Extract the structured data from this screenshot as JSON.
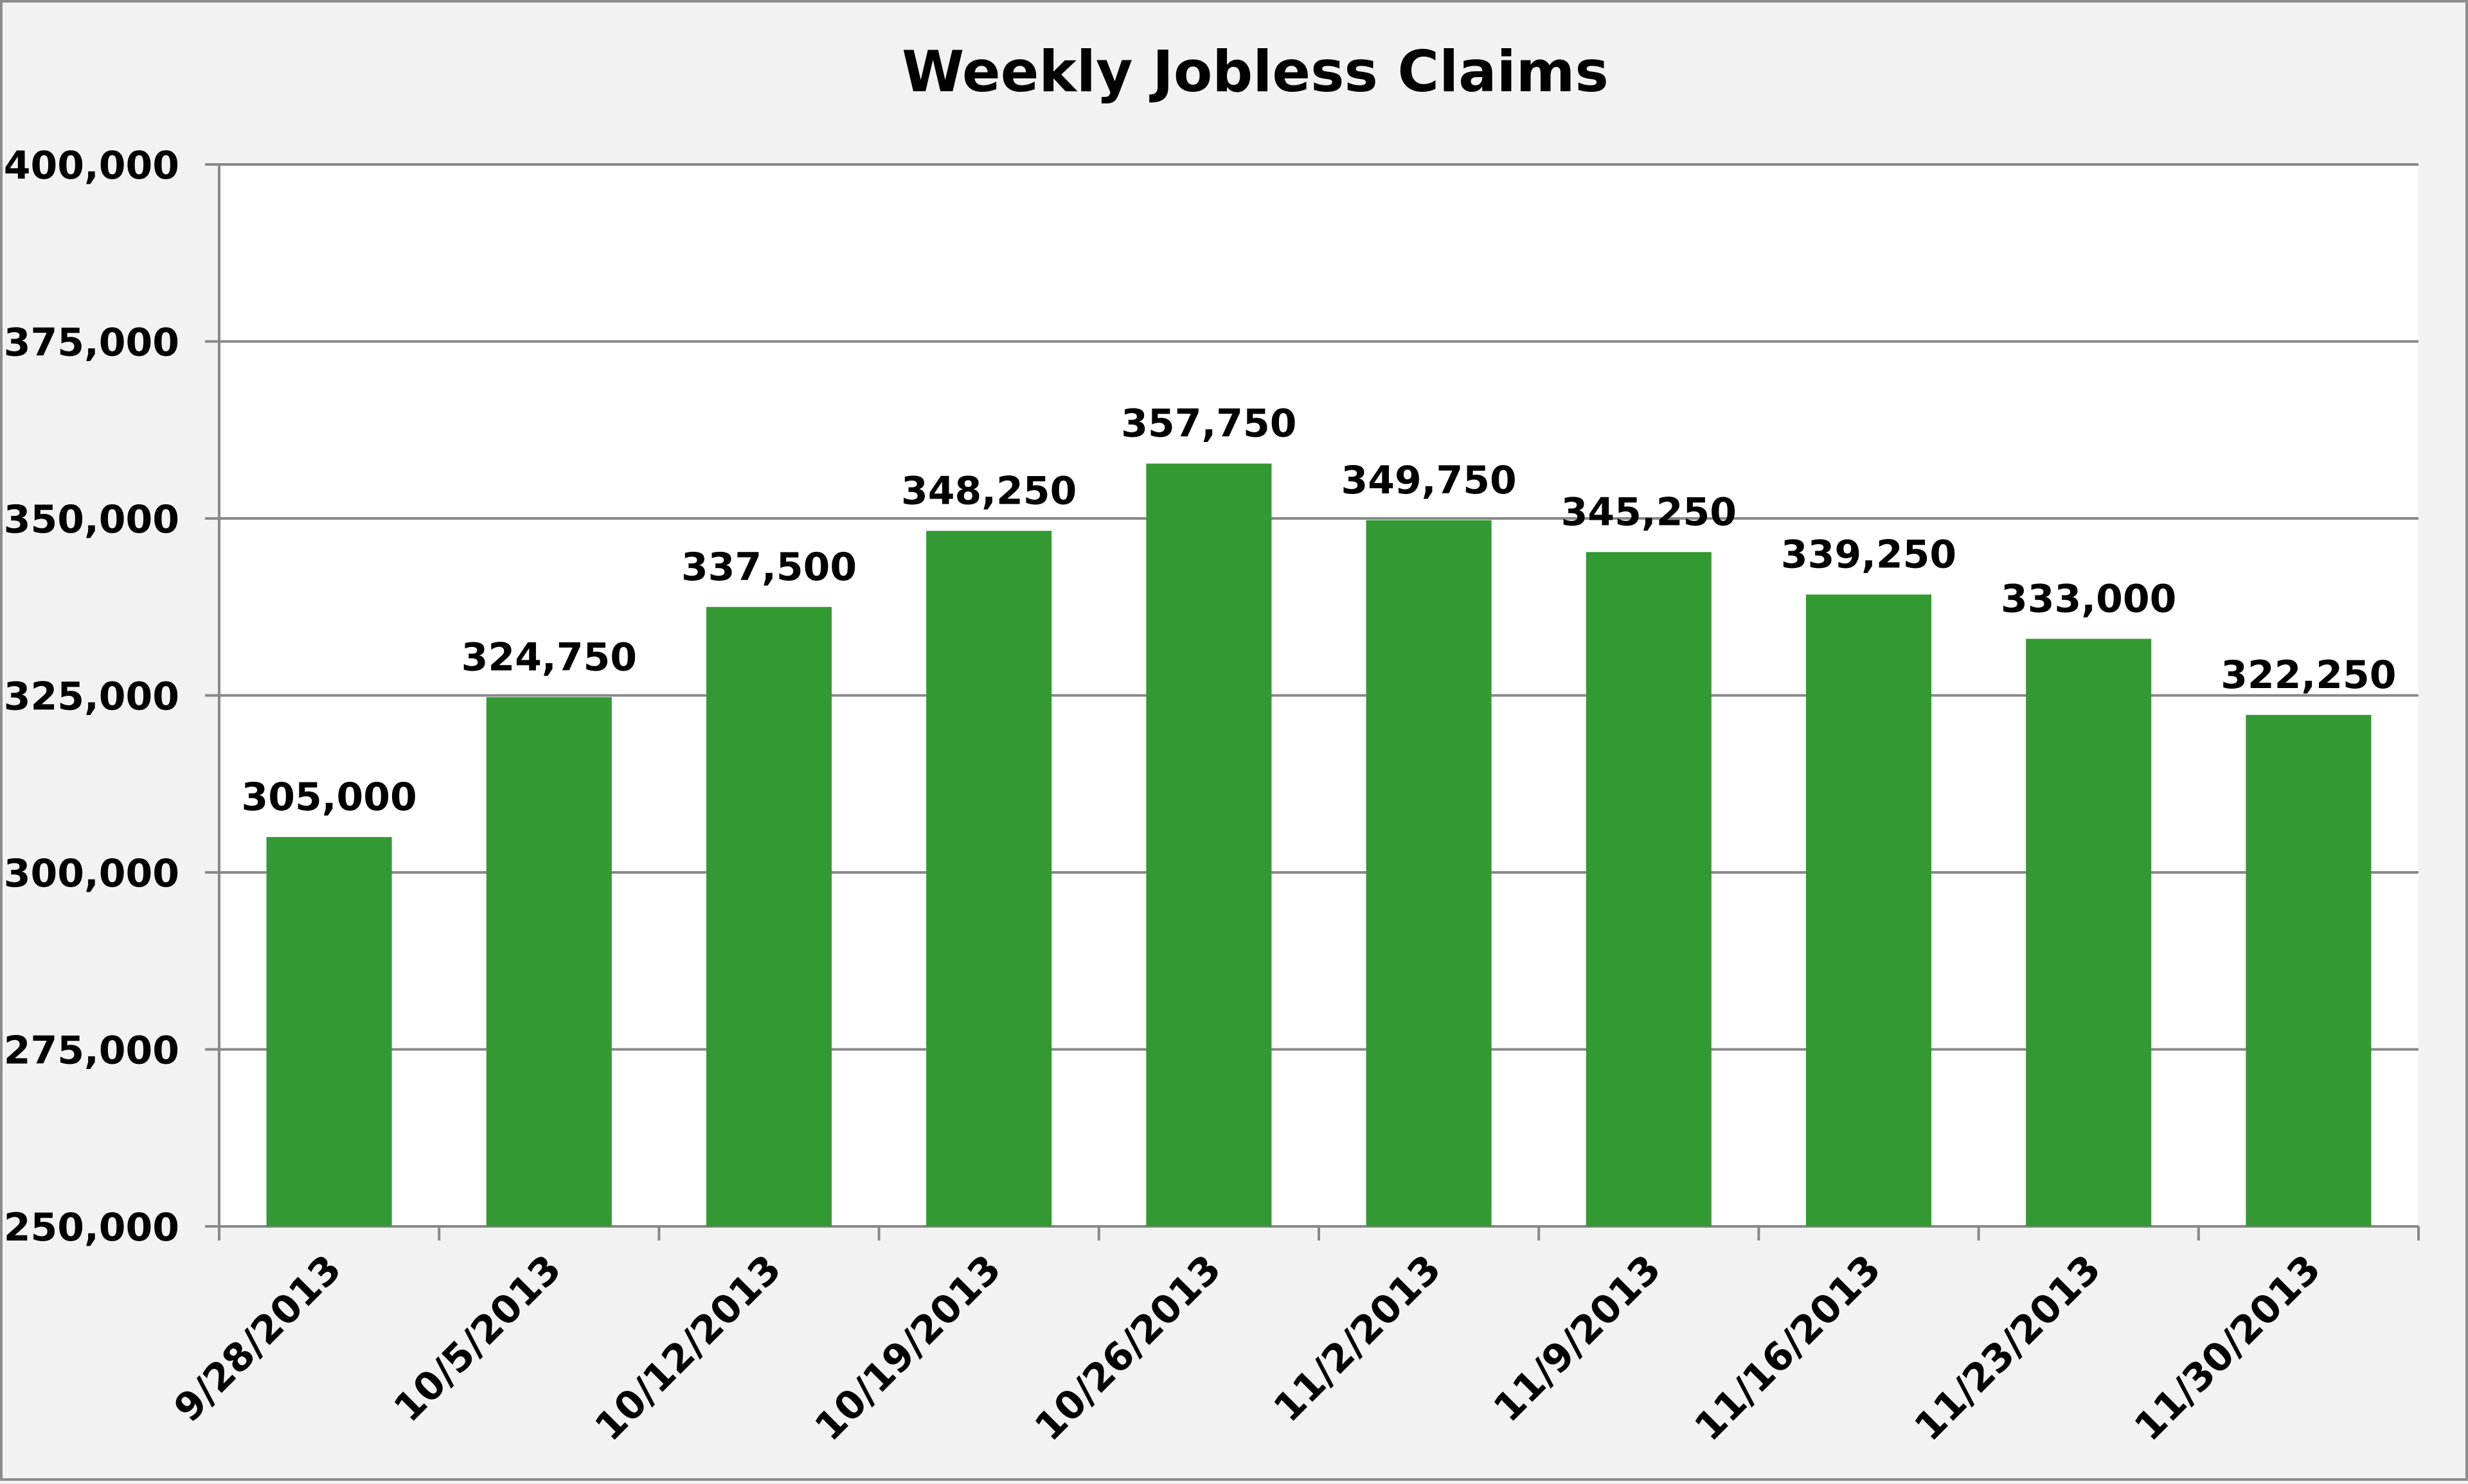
{
  "chart_data": {
    "type": "bar",
    "title": "Weekly Jobless Claims",
    "xlabel": "",
    "ylabel": "",
    "categories": [
      "9/28/2013",
      "10/5/2013",
      "10/12/2013",
      "10/19/2013",
      "10/26/2013",
      "11/2/2013",
      "11/9/2013",
      "11/16/2013",
      "11/23/2013",
      "11/30/2013"
    ],
    "values": [
      305000,
      324750,
      337500,
      348250,
      357750,
      349750,
      345250,
      339250,
      333000,
      322250
    ],
    "data_labels": [
      "305,000",
      "324,750",
      "337,500",
      "348,250",
      "357,750",
      "349,750",
      "345,250",
      "339,250",
      "333,000",
      "322,250"
    ],
    "ylim": [
      250000,
      400000
    ],
    "yticks": [
      250000,
      275000,
      300000,
      325000,
      350000,
      375000,
      400000
    ],
    "ytick_labels": [
      "250,000",
      "275,000",
      "300,000",
      "325,000",
      "350,000",
      "375,000",
      "400,000"
    ],
    "grid": true,
    "legend": "none",
    "colors": {
      "bar": "#339933",
      "plot_background": "#ffffff",
      "chart_background": "#f2f2f2",
      "gridline": "#888888",
      "border": "#8c8c8c"
    }
  }
}
